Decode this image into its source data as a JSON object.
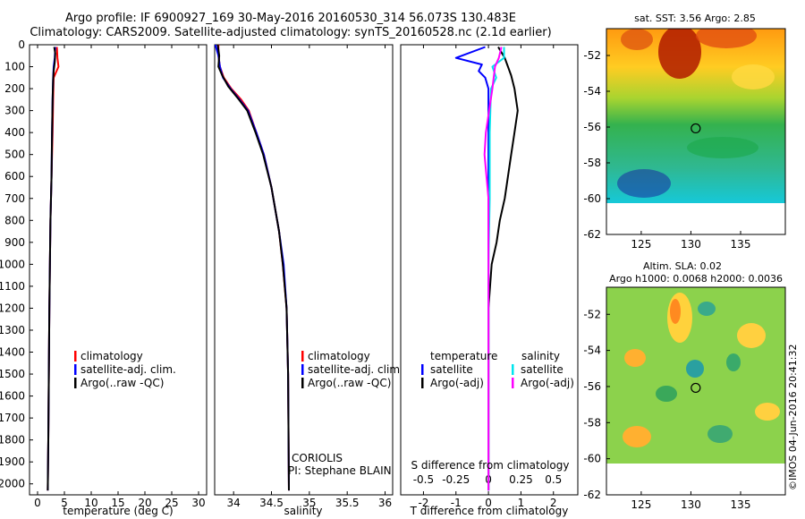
{
  "header": {
    "title1": "Argo profile: IF 6900927_169 30-May-2016 20160530_314 56.073S 130.483E",
    "title2": "Climatology: CARS2009. Satellite-adjusted climatology: synTS_20160528.nc (2.1d earlier)"
  },
  "colors": {
    "climatology": "#ff0000",
    "satellite": "#0000ff",
    "argo": "#000000",
    "satellite_salinity": "#00e5ee",
    "argo_salinity": "#ff00ff"
  },
  "chart_data": [
    {
      "type": "line",
      "title": "",
      "xlabel": "temperature (deg C)",
      "ylabel": "",
      "xlim": [
        -1.5,
        31.5
      ],
      "ylim": [
        2050,
        0
      ],
      "xticks": [
        0,
        5,
        10,
        15,
        20,
        25,
        30
      ],
      "yticks": [
        0,
        100,
        200,
        300,
        400,
        500,
        600,
        700,
        800,
        900,
        1000,
        1100,
        1200,
        1300,
        1400,
        1500,
        1600,
        1700,
        1800,
        1900,
        2000
      ],
      "legend": {
        "placement": "lower-right",
        "entries": [
          "climatology",
          "satellite-adj. clim.",
          "Argo(..raw -QC)"
        ]
      },
      "series": [
        {
          "name": "climatology",
          "color": "#ff0000",
          "points": [
            [
              3.6,
              10
            ],
            [
              3.7,
              60
            ],
            [
              3.9,
              100
            ],
            [
              3.0,
              150
            ],
            [
              2.9,
              250
            ],
            [
              2.8,
              400
            ],
            [
              2.6,
              600
            ],
            [
              2.4,
              800
            ],
            [
              2.3,
              1000
            ],
            [
              2.2,
              1200
            ],
            [
              2.1,
              1500
            ],
            [
              2.0,
              1800
            ],
            [
              1.9,
              2030
            ]
          ]
        },
        {
          "name": "satellite-adj. clim.",
          "color": "#0000ff",
          "points": [
            [
              3.3,
              10
            ],
            [
              3.2,
              60
            ],
            [
              3.0,
              100
            ],
            [
              2.9,
              150
            ],
            [
              2.8,
              250
            ],
            [
              2.7,
              400
            ],
            [
              2.6,
              600
            ],
            [
              2.4,
              800
            ],
            [
              2.3,
              1000
            ],
            [
              2.2,
              1200
            ],
            [
              2.1,
              1500
            ],
            [
              2.0,
              1800
            ],
            [
              1.9,
              2030
            ]
          ]
        },
        {
          "name": "Argo(..raw -QC)",
          "color": "#000000",
          "points": [
            [
              3.1,
              10
            ],
            [
              3.3,
              40
            ],
            [
              3.2,
              80
            ],
            [
              3.0,
              120
            ],
            [
              2.9,
              160
            ],
            [
              2.8,
              250
            ],
            [
              2.7,
              400
            ],
            [
              2.6,
              600
            ],
            [
              2.4,
              800
            ],
            [
              2.3,
              1000
            ],
            [
              2.2,
              1200
            ],
            [
              2.1,
              1500
            ],
            [
              2.0,
              1800
            ],
            [
              1.9,
              2030
            ]
          ]
        }
      ]
    },
    {
      "type": "line",
      "title": "",
      "xlabel": "salinity",
      "ylabel": "",
      "xlim": [
        33.75,
        36.1
      ],
      "ylim": [
        2050,
        0
      ],
      "xticks": [
        34,
        34.5,
        35,
        35.5,
        36
      ],
      "legend": {
        "placement": "lower-right",
        "entries": [
          "climatology",
          "satellite-adj. clim.",
          "Argo(..raw -QC)"
        ]
      },
      "annotation": [
        "CORIOLIS",
        "PI: Stephane BLAIN"
      ],
      "series": [
        {
          "name": "climatology",
          "color": "#ff0000",
          "points": [
            [
              33.8,
              0
            ],
            [
              33.8,
              50
            ],
            [
              33.82,
              100
            ],
            [
              33.87,
              150
            ],
            [
              33.97,
              200
            ],
            [
              34.1,
              250
            ],
            [
              34.2,
              300
            ],
            [
              34.3,
              400
            ],
            [
              34.4,
              500
            ],
            [
              34.5,
              650
            ],
            [
              34.6,
              850
            ],
            [
              34.65,
              1000
            ],
            [
              34.7,
              1200
            ],
            [
              34.72,
              1500
            ],
            [
              34.73,
              2030
            ]
          ]
        },
        {
          "name": "satellite-adj. clim.",
          "color": "#0000ff",
          "points": [
            [
              33.76,
              0
            ],
            [
              33.8,
              50
            ],
            [
              33.82,
              100
            ],
            [
              33.86,
              150
            ],
            [
              33.96,
              200
            ],
            [
              34.08,
              250
            ],
            [
              34.19,
              300
            ],
            [
              34.3,
              400
            ],
            [
              34.4,
              500
            ],
            [
              34.5,
              650
            ],
            [
              34.6,
              850
            ],
            [
              34.66,
              1000
            ],
            [
              34.7,
              1200
            ],
            [
              34.72,
              1500
            ],
            [
              34.73,
              2030
            ]
          ]
        },
        {
          "name": "Argo(..raw -QC)",
          "color": "#000000",
          "points": [
            [
              33.79,
              0
            ],
            [
              33.81,
              50
            ],
            [
              33.8,
              100
            ],
            [
              33.85,
              140
            ],
            [
              33.93,
              190
            ],
            [
              34.07,
              250
            ],
            [
              34.18,
              300
            ],
            [
              34.29,
              400
            ],
            [
              34.39,
              500
            ],
            [
              34.5,
              650
            ],
            [
              34.6,
              850
            ],
            [
              34.65,
              1000
            ],
            [
              34.7,
              1200
            ],
            [
              34.72,
              1500
            ],
            [
              34.73,
              2030
            ]
          ]
        }
      ]
    },
    {
      "type": "line",
      "title": "",
      "xlabel": "T difference from climatology",
      "secondary_xlabel": "S difference from climatology",
      "ylabel": "",
      "xlim": [
        -2.7,
        2.75
      ],
      "ylim": [
        2050,
        0
      ],
      "xticks": [
        -2,
        -1,
        0,
        1,
        2
      ],
      "secondary_xticks": [
        -0.5,
        -0.25,
        0,
        0.25,
        0.5
      ],
      "secondary_xlim": [
        -0.675,
        0.6875
      ],
      "legend": {
        "placement": "lower-center",
        "groups": [
          "temperature",
          "salinity"
        ],
        "entries": [
          "satellite",
          "Argo(-adj)",
          "satellite",
          "Argo(-adj)"
        ]
      },
      "series": [
        {
          "name": "satellite",
          "group": "temperature",
          "color": "#0000ff",
          "points": [
            [
              -0.1,
              10
            ],
            [
              -1.0,
              60
            ],
            [
              -0.2,
              90
            ],
            [
              -0.3,
              120
            ],
            [
              -0.1,
              150
            ],
            [
              0,
              200
            ],
            [
              0,
              300
            ],
            [
              0,
              500
            ],
            [
              0,
              800
            ],
            [
              0,
              1100
            ],
            [
              0,
              1500
            ],
            [
              0,
              1800
            ],
            [
              0,
              2030
            ]
          ]
        },
        {
          "name": "Argo(-adj)",
          "group": "temperature",
          "color": "#000000",
          "points": [
            [
              0.3,
              10
            ],
            [
              0.5,
              60
            ],
            [
              0.6,
              100
            ],
            [
              0.7,
              140
            ],
            [
              0.8,
              200
            ],
            [
              0.9,
              300
            ],
            [
              0.8,
              400
            ],
            [
              0.7,
              500
            ],
            [
              0.6,
              600
            ],
            [
              0.5,
              700
            ],
            [
              0.35,
              800
            ],
            [
              0.25,
              900
            ],
            [
              0.1,
              1000
            ],
            [
              0.05,
              1100
            ],
            [
              0,
              1200
            ],
            [
              0,
              1500
            ],
            [
              0,
              1800
            ],
            [
              0,
              2030
            ]
          ]
        },
        {
          "name": "satellite",
          "group": "salinity",
          "color": "#00e5ee",
          "points": [
            [
              0.12,
              10
            ],
            [
              0.12,
              60
            ],
            [
              0.03,
              100
            ],
            [
              0.06,
              150
            ],
            [
              0.02,
              200
            ],
            [
              0.01,
              400
            ],
            [
              0.01,
              700
            ],
            [
              0,
              1000
            ],
            [
              0,
              1500
            ],
            [
              0,
              2030
            ]
          ]
        },
        {
          "name": "Argo(-adj)",
          "group": "salinity",
          "color": "#ff00ff",
          "points": [
            [
              0.1,
              10
            ],
            [
              0.08,
              60
            ],
            [
              0.05,
              100
            ],
            [
              0.03,
              200
            ],
            [
              -0.02,
              400
            ],
            [
              -0.03,
              500
            ],
            [
              0,
              700
            ],
            [
              0,
              900
            ],
            [
              0,
              1200
            ],
            [
              0,
              2030
            ]
          ]
        }
      ]
    },
    {
      "type": "heatmap",
      "title": "sat. SST: 3.56 Argo: 2.85",
      "xlim": [
        121.5,
        139.5
      ],
      "ylim": [
        -62,
        -50.5
      ],
      "xticks": [
        125,
        130,
        135
      ],
      "yticks": [
        -52,
        -54,
        -56,
        -58,
        -60,
        -62
      ],
      "marker": {
        "lon": 130.483,
        "lat": -56.073
      }
    },
    {
      "type": "heatmap",
      "title": "Altim. SLA: 0.02",
      "subtitle": "Argo h1000: 0.0068 h2000: 0.0036",
      "xlim": [
        121.5,
        139.5
      ],
      "ylim": [
        -62,
        -50.5
      ],
      "xticks": [
        125,
        130,
        135
      ],
      "yticks": [
        -52,
        -54,
        -56,
        -58,
        -60,
        -62
      ],
      "marker": {
        "lon": 130.483,
        "lat": -56.073
      }
    }
  ],
  "legend_labels": {
    "climatology": "climatology",
    "satellite_adj": "satellite-adj. clim.",
    "argo_raw": "Argo(..raw -QC)",
    "temperature": "temperature",
    "salinity": "salinity",
    "satellite": "satellite",
    "argo_adj": "Argo(-adj)"
  },
  "credit": "©IMOS 04-Jun-2016 20:41:32"
}
